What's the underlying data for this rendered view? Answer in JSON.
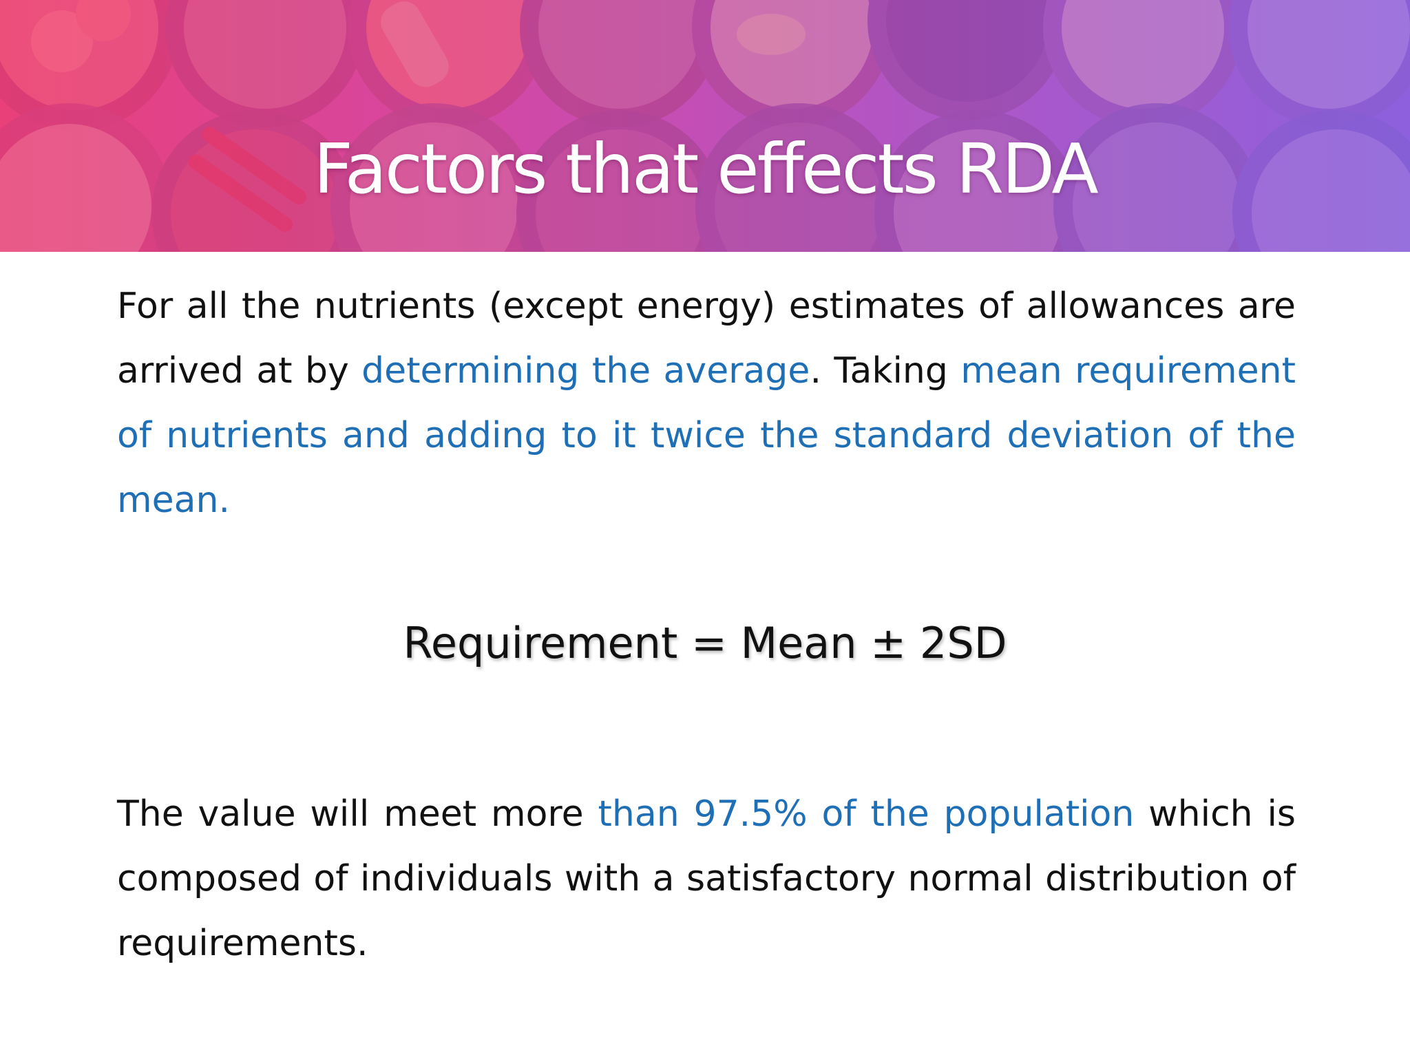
{
  "slide": {
    "title": "Factors that effects RDA",
    "paragraph1": {
      "s1": "For all the nutrients (except energy) estimates of allowances are arrived at by ",
      "s2": "determining the average",
      "s3": ". Taking ",
      "s4": "mean requirement of nutrients and adding to it twice the standard deviation of the mean."
    },
    "formula": "Requirement = Mean ± 2SD",
    "paragraph2": {
      "s1": "The value will meet more ",
      "s2": "than 97.5% of the population",
      "s3": " which is composed of individuals with a satisfactory normal distribution of requirements."
    }
  },
  "colors": {
    "highlight": "#1e6fb5",
    "body_text": "#111111",
    "title_text": "#ffffff",
    "banner_left": "#e8457c",
    "banner_right": "#8f62d9"
  }
}
